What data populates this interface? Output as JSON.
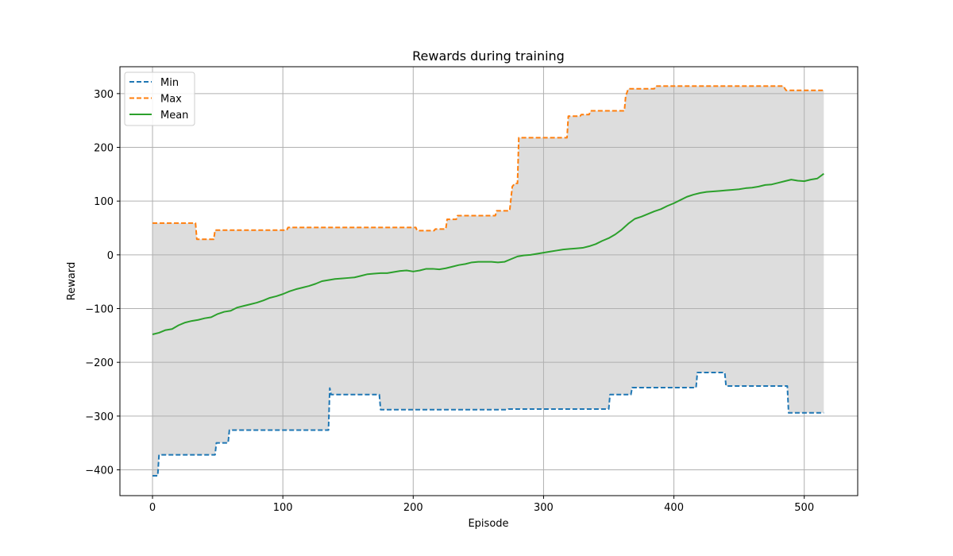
{
  "chart_data": {
    "type": "line",
    "title": "Rewards during training",
    "xlabel": "Episode",
    "ylabel": "Reward",
    "xlim": [
      -25,
      541
    ],
    "ylim": [
      -448,
      350
    ],
    "xticks": [
      0,
      100,
      200,
      300,
      400,
      500
    ],
    "yticks": [
      -400,
      -300,
      -200,
      -100,
      0,
      100,
      200,
      300
    ],
    "xtick_labels": [
      "0",
      "100",
      "200",
      "300",
      "400",
      "500"
    ],
    "ytick_labels": [
      "−400",
      "−300",
      "−200",
      "−100",
      "0",
      "100",
      "200",
      "300"
    ],
    "grid": true,
    "legend_position": "upper-left",
    "band": {
      "between": [
        "Min",
        "Max"
      ],
      "color": "#dddddd"
    },
    "series": [
      {
        "name": "Min",
        "style": "dashed",
        "color": "#1f77b4",
        "points": [
          [
            0,
            -411
          ],
          [
            4,
            -411
          ],
          [
            5,
            -372
          ],
          [
            48,
            -372
          ],
          [
            49,
            -350
          ],
          [
            58,
            -350
          ],
          [
            59,
            -326
          ],
          [
            135,
            -326
          ],
          [
            136,
            -248
          ],
          [
            137,
            -260
          ],
          [
            174,
            -260
          ],
          [
            175,
            -288
          ],
          [
            272,
            -288
          ],
          [
            273,
            -287
          ],
          [
            350,
            -287
          ],
          [
            351,
            -260
          ],
          [
            367,
            -260
          ],
          [
            368,
            -247
          ],
          [
            417,
            -247
          ],
          [
            418,
            -219
          ],
          [
            439,
            -219
          ],
          [
            440,
            -244
          ],
          [
            487,
            -244
          ],
          [
            488,
            -294
          ],
          [
            515,
            -294
          ]
        ]
      },
      {
        "name": "Max",
        "style": "dashed",
        "color": "#ff7f0e",
        "points": [
          [
            0,
            59
          ],
          [
            33,
            59
          ],
          [
            34,
            29
          ],
          [
            47,
            29
          ],
          [
            48,
            46
          ],
          [
            103,
            46
          ],
          [
            104,
            51
          ],
          [
            202,
            51
          ],
          [
            203,
            45
          ],
          [
            216,
            45
          ],
          [
            217,
            48
          ],
          [
            225,
            48
          ],
          [
            226,
            66
          ],
          [
            233,
            66
          ],
          [
            234,
            73
          ],
          [
            263,
            73
          ],
          [
            264,
            82
          ],
          [
            274,
            82
          ],
          [
            276,
            127
          ],
          [
            278,
            133
          ],
          [
            280,
            133
          ],
          [
            281,
            218
          ],
          [
            318,
            218
          ],
          [
            319,
            258
          ],
          [
            328,
            258
          ],
          [
            329,
            261
          ],
          [
            335,
            261
          ],
          [
            336,
            268
          ],
          [
            362,
            268
          ],
          [
            363,
            295
          ],
          [
            365,
            309
          ],
          [
            385,
            309
          ],
          [
            386,
            314
          ],
          [
            484,
            314
          ],
          [
            486,
            306
          ],
          [
            515,
            306
          ]
        ]
      },
      {
        "name": "Mean",
        "style": "solid",
        "color": "#2ca02c",
        "points": [
          [
            0,
            -148
          ],
          [
            5,
            -145
          ],
          [
            10,
            -140
          ],
          [
            15,
            -138
          ],
          [
            20,
            -131
          ],
          [
            25,
            -126
          ],
          [
            30,
            -123
          ],
          [
            35,
            -121
          ],
          [
            40,
            -118
          ],
          [
            45,
            -116
          ],
          [
            50,
            -110
          ],
          [
            55,
            -106
          ],
          [
            60,
            -104
          ],
          [
            65,
            -98
          ],
          [
            70,
            -95
          ],
          [
            75,
            -92
          ],
          [
            80,
            -89
          ],
          [
            85,
            -85
          ],
          [
            90,
            -80
          ],
          [
            95,
            -77
          ],
          [
            100,
            -73
          ],
          [
            105,
            -68
          ],
          [
            110,
            -64
          ],
          [
            115,
            -61
          ],
          [
            120,
            -58
          ],
          [
            125,
            -54
          ],
          [
            130,
            -49
          ],
          [
            135,
            -47
          ],
          [
            140,
            -45
          ],
          [
            145,
            -44
          ],
          [
            150,
            -43
          ],
          [
            155,
            -42
          ],
          [
            160,
            -39
          ],
          [
            165,
            -36
          ],
          [
            170,
            -35
          ],
          [
            175,
            -34
          ],
          [
            180,
            -34
          ],
          [
            185,
            -32
          ],
          [
            190,
            -30
          ],
          [
            195,
            -29
          ],
          [
            200,
            -31
          ],
          [
            205,
            -29
          ],
          [
            210,
            -26
          ],
          [
            215,
            -26
          ],
          [
            220,
            -27
          ],
          [
            225,
            -25
          ],
          [
            230,
            -22
          ],
          [
            235,
            -19
          ],
          [
            240,
            -17
          ],
          [
            245,
            -14
          ],
          [
            250,
            -13
          ],
          [
            255,
            -13
          ],
          [
            260,
            -13
          ],
          [
            265,
            -14
          ],
          [
            270,
            -13
          ],
          [
            275,
            -8
          ],
          [
            280,
            -3
          ],
          [
            285,
            -1
          ],
          [
            290,
            0
          ],
          [
            295,
            2
          ],
          [
            300,
            4
          ],
          [
            305,
            6
          ],
          [
            310,
            8
          ],
          [
            315,
            10
          ],
          [
            320,
            11
          ],
          [
            325,
            12
          ],
          [
            330,
            13
          ],
          [
            335,
            16
          ],
          [
            340,
            20
          ],
          [
            345,
            26
          ],
          [
            350,
            31
          ],
          [
            355,
            38
          ],
          [
            360,
            47
          ],
          [
            365,
            58
          ],
          [
            370,
            67
          ],
          [
            375,
            71
          ],
          [
            380,
            76
          ],
          [
            385,
            81
          ],
          [
            390,
            85
          ],
          [
            395,
            91
          ],
          [
            400,
            96
          ],
          [
            405,
            102
          ],
          [
            410,
            108
          ],
          [
            415,
            112
          ],
          [
            420,
            115
          ],
          [
            425,
            117
          ],
          [
            430,
            118
          ],
          [
            435,
            119
          ],
          [
            440,
            120
          ],
          [
            445,
            121
          ],
          [
            450,
            122
          ],
          [
            455,
            124
          ],
          [
            460,
            125
          ],
          [
            465,
            127
          ],
          [
            470,
            130
          ],
          [
            475,
            131
          ],
          [
            480,
            134
          ],
          [
            485,
            137
          ],
          [
            490,
            140
          ],
          [
            495,
            138
          ],
          [
            500,
            137
          ],
          [
            505,
            140
          ],
          [
            510,
            142
          ],
          [
            515,
            151
          ]
        ]
      }
    ]
  }
}
